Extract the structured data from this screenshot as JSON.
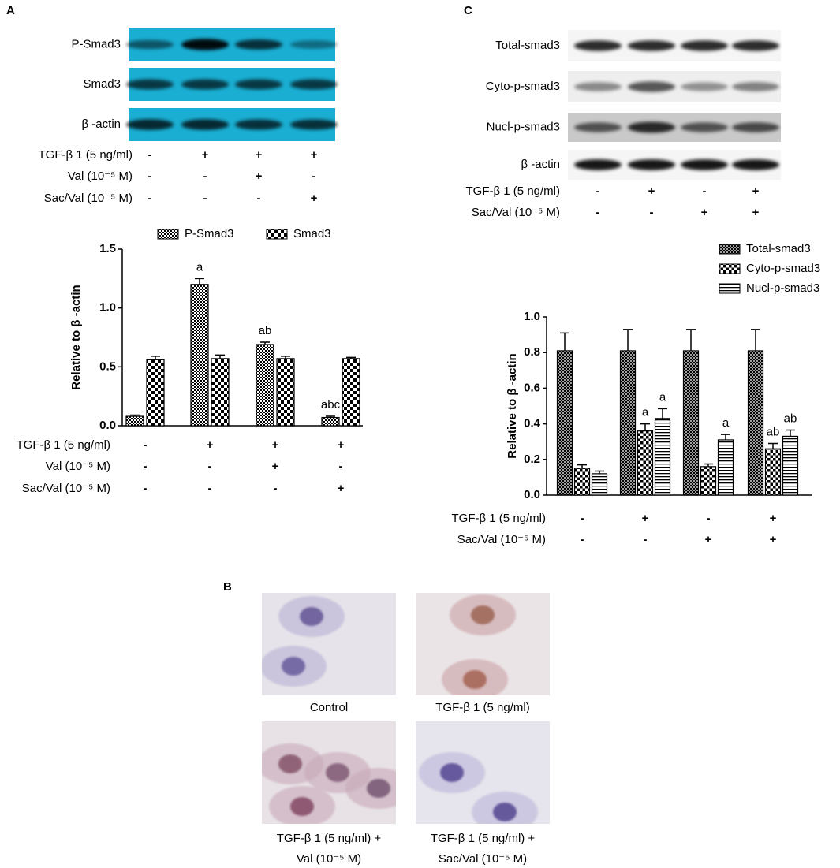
{
  "panel_labels": [
    "A",
    "B",
    "C"
  ],
  "blots": [
    {
      "rows": [
        "P-Smad3",
        "Smad3",
        "β -actin"
      ],
      "conditions": [
        {
          "label": "TGF-β 1 (5 ng/ml)",
          "marks": [
            "-",
            "+",
            "+",
            "+"
          ]
        },
        {
          "label": "Val (10⁻⁵ M)",
          "marks": [
            "-",
            "-",
            "+",
            "-"
          ]
        },
        {
          "label": "Sac/Val (10⁻⁵ M)",
          "marks": [
            "-",
            "-",
            "-",
            "+"
          ]
        }
      ]
    },
    {
      "rows": [
        "Total-smad3",
        "Cyto-p-smad3",
        "Nucl-p-smad3",
        "β -actin"
      ],
      "conditions": [
        {
          "label": "TGF-β 1 (5 ng/ml)",
          "marks": [
            "-",
            "+",
            "-",
            "+"
          ]
        },
        {
          "label": "Sac/Val (10⁻⁵ M)",
          "marks": [
            "-",
            "-",
            "+",
            "+"
          ]
        }
      ]
    }
  ],
  "chart_data": [
    {
      "type": "bar",
      "y_label": "Relative to β -actin",
      "ylim": [
        0,
        1.5
      ],
      "yticks": [
        {
          "value": 0,
          "label": "0.0"
        },
        0.5,
        {
          "value": 1,
          "label": "1.0"
        },
        1.5
      ],
      "series": [
        {
          "name": "P-Smad3",
          "values": [
            0.08,
            1.2,
            0.69,
            0.07
          ],
          "errors": [
            0.01,
            0.05,
            0.02,
            0.01
          ],
          "annotations": [
            null,
            "a",
            "ab",
            "abc"
          ]
        },
        {
          "name": "Smad3",
          "values": [
            0.56,
            0.57,
            0.57,
            0.57
          ],
          "errors": [
            0.03,
            0.03,
            0.02,
            0.01
          ]
        }
      ],
      "conditions": [
        {
          "label": "TGF-β 1 (5 ng/ml)",
          "marks": [
            "-",
            "+",
            "+",
            "+"
          ]
        },
        {
          "label": "Val (10⁻⁵ M)",
          "marks": [
            "-",
            "-",
            "+",
            "-"
          ]
        },
        {
          "label": "Sac/Val (10⁻⁵ M)",
          "marks": [
            "-",
            "-",
            "-",
            "+"
          ]
        }
      ]
    },
    {
      "type": "bar",
      "y_label": "Relative to β -actin",
      "ylim": [
        0,
        1
      ],
      "yticks": [
        {
          "value": 0,
          "label": "0.0"
        },
        0.2,
        0.4,
        0.6,
        0.8,
        {
          "value": 1,
          "label": "1.0"
        }
      ],
      "series": [
        {
          "name": "Total-smad3",
          "values": [
            0.81,
            0.81,
            0.81,
            0.81
          ],
          "errors": [
            0.1,
            0.12,
            0.12,
            0.12
          ]
        },
        {
          "name": "Cyto-p-smad3",
          "values": [
            0.15,
            0.36,
            0.16,
            0.26
          ],
          "errors": [
            0.02,
            0.04,
            0.015,
            0.03
          ],
          "annotations": [
            null,
            "a",
            null,
            "ab"
          ]
        },
        {
          "name": "Nucl-p-smad3",
          "values": [
            0.12,
            0.43,
            0.31,
            0.33
          ],
          "errors": [
            0.015,
            0.055,
            0.03,
            0.035
          ],
          "annotations": [
            null,
            "a",
            "a",
            "ab"
          ]
        }
      ],
      "conditions": [
        {
          "label": "TGF-β 1 (5 ng/ml)",
          "marks": [
            "-",
            "+",
            "-",
            "+"
          ]
        },
        {
          "label": "Sac/Val (10⁻⁵ M)",
          "marks": [
            "-",
            "-",
            "+",
            "+"
          ]
        }
      ]
    }
  ],
  "images": [
    {
      "caption": [
        "Control"
      ]
    },
    {
      "caption": [
        "TGF-β 1 (5 ng/ml)"
      ]
    },
    {
      "caption": [
        "TGF-β 1 (5 ng/ml) +",
        "Val (10⁻⁵ M)"
      ]
    },
    {
      "caption": [
        "TGF-β 1 (5 ng/ml) +",
        "Sac/Val (10⁻⁵ M)"
      ]
    }
  ]
}
